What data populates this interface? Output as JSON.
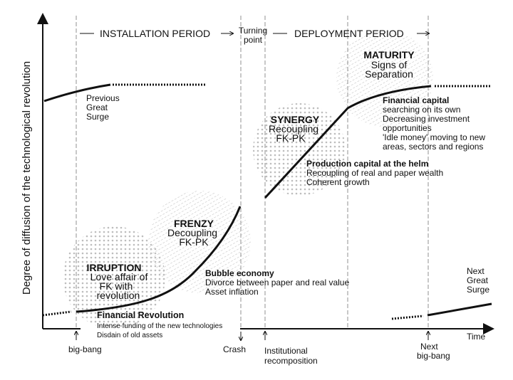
{
  "y_axis_label": "Degree of diffusion of the technological revolution",
  "x_axis_label": "Time",
  "periods": {
    "installation": "INSTALLATION PERIOD",
    "turning_1": "Turning",
    "turning_2": "point",
    "deployment": "DEPLOYMENT PERIOD"
  },
  "previous_surge": [
    "Previous",
    "Great",
    "Surge"
  ],
  "next_surge": [
    "Next",
    "Great",
    "Surge"
  ],
  "phases": {
    "irruption": {
      "title": "IRRUPTION",
      "lines": [
        "Love affair of",
        "FK with",
        "revolution"
      ]
    },
    "frenzy": {
      "title": "FRENZY",
      "lines": [
        "Decoupling",
        "FK-PK"
      ]
    },
    "synergy": {
      "title": "SYNERGY",
      "lines": [
        "Recoupling",
        "FK-PK"
      ]
    },
    "maturity": {
      "title": "MATURITY",
      "lines": [
        "Signs of",
        "Separation"
      ]
    }
  },
  "notes": {
    "financial_revolution": {
      "title": "Financial Revolution",
      "lines": [
        "Intense funding of the new technologies",
        "Disdain of old assets"
      ]
    },
    "bubble": {
      "title": "Bubble economy",
      "lines": [
        "Divorce between paper and real value",
        "Asset inflation"
      ]
    },
    "production": {
      "title": "Production capital at the helm",
      "lines": [
        "Recoupling of real and paper wealth",
        "Coherent growth"
      ]
    },
    "financial_capital": {
      "title": "Financial capital",
      "lines": [
        "searching on its own",
        "Decreasing investment",
        "opportunities",
        "'Idle money' moving to new",
        "areas, sectors and regions"
      ]
    }
  },
  "events": {
    "big_bang": "big-bang",
    "crash": "Crash",
    "institutional_1": "Institutional",
    "institutional_2": "recomposition",
    "next_1": "Next",
    "next_2": "big-bang"
  }
}
